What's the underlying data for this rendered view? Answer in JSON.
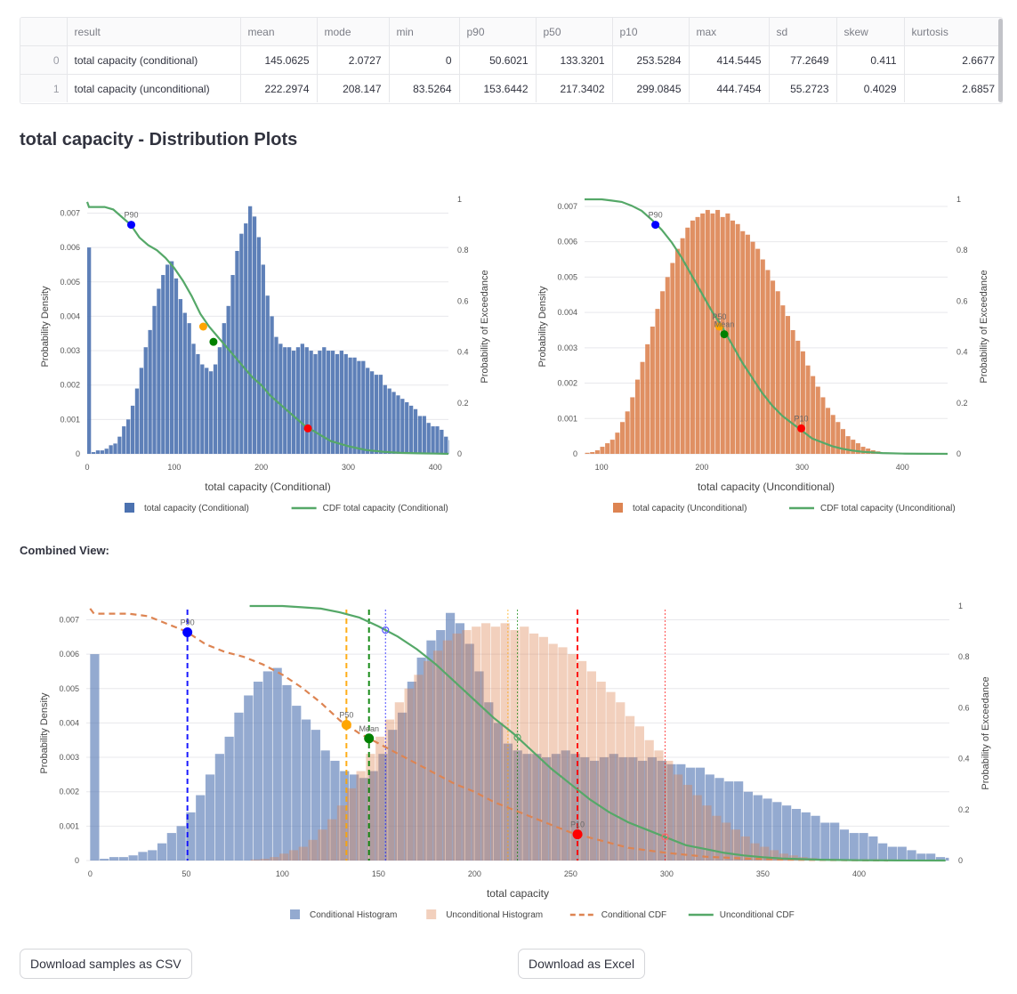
{
  "table": {
    "columns": [
      "",
      "result",
      "mean",
      "mode",
      "min",
      "p90",
      "p50",
      "p10",
      "max",
      "sd",
      "skew",
      "kurtosis"
    ],
    "rows": [
      [
        "0",
        "total capacity (conditional)",
        "145.0625",
        "2.0727",
        "0",
        "50.6021",
        "133.3201",
        "253.5284",
        "414.5445",
        "77.2649",
        "0.411",
        "2.6677"
      ],
      [
        "1",
        "total capacity (unconditional)",
        "222.2974",
        "208.147",
        "83.5264",
        "153.6442",
        "217.3402",
        "299.0845",
        "444.7454",
        "55.2723",
        "0.4029",
        "2.6857"
      ]
    ]
  },
  "section_title": "total capacity - Distribution Plots",
  "combined_label": "Combined View:",
  "buttons": {
    "csv": "Download samples as CSV",
    "excel": "Download as Excel"
  },
  "colors": {
    "conditional": "#4c72b0",
    "unconditional": "#dd8452",
    "cdf_green": "#55a868",
    "p90": "#0000ff",
    "p50": "#ffa500",
    "mean": "#008000",
    "p10": "#ff0000"
  },
  "chart_data": [
    {
      "type": "bar",
      "title": "",
      "xlabel": "total capacity (Conditional)",
      "ylabel": "Probability Density",
      "y2label": "Probability of Exceedance",
      "xlim": [
        0,
        415
      ],
      "ylim": [
        0,
        0.0074
      ],
      "y2lim": [
        0,
        1
      ],
      "xticks": [
        0,
        100,
        200,
        300,
        400
      ],
      "yticks": [
        0,
        0.001,
        0.002,
        0.003,
        0.004,
        0.005,
        0.006,
        0.007
      ],
      "y2ticks": [
        0,
        0.2,
        0.4,
        0.6,
        0.8,
        1
      ],
      "legend": [
        "total capacity (Conditional)",
        "CDF total capacity (Conditional)"
      ],
      "legend_position": "bottom",
      "series": [
        {
          "name": "total capacity (Conditional)",
          "kind": "histogram",
          "bin_start": 0,
          "bin_width": 5,
          "values": [
            0.006,
            5e-05,
            0.0001,
            0.0001,
            0.00015,
            0.00025,
            0.0003,
            0.0005,
            0.0008,
            0.001,
            0.0014,
            0.0019,
            0.0025,
            0.0031,
            0.0036,
            0.0043,
            0.0048,
            0.0052,
            0.0055,
            0.0056,
            0.0051,
            0.0045,
            0.0041,
            0.0038,
            0.0032,
            0.0029,
            0.0026,
            0.0025,
            0.0024,
            0.0026,
            0.0031,
            0.0038,
            0.0043,
            0.0052,
            0.0059,
            0.0064,
            0.0067,
            0.0072,
            0.0069,
            0.0063,
            0.0055,
            0.0046,
            0.004,
            0.0034,
            0.0032,
            0.0031,
            0.0031,
            0.003,
            0.0031,
            0.0032,
            0.0031,
            0.003,
            0.0029,
            0.003,
            0.0031,
            0.003,
            0.003,
            0.0029,
            0.003,
            0.0029,
            0.0028,
            0.0028,
            0.0027,
            0.0027,
            0.0025,
            0.0024,
            0.0023,
            0.0023,
            0.002,
            0.0019,
            0.0018,
            0.0017,
            0.0016,
            0.0015,
            0.0014,
            0.0013,
            0.0011,
            0.0011,
            0.0009,
            0.0008,
            0.0008,
            0.0007,
            0.0005,
            0.0004,
            0.0004,
            0.0003,
            0.0002,
            0.0002,
            0.0001,
            8e-05,
            5e-05,
            3e-05,
            2e-05,
            1e-05,
            1e-05,
            5e-06,
            3e-06,
            2e-06,
            1e-06,
            1e-06,
            5e-07,
            3e-07,
            2e-07
          ]
        },
        {
          "name": "CDF total capacity (Conditional)",
          "kind": "line",
          "axis": "y2",
          "x": [
            0,
            2,
            20,
            30,
            40,
            50,
            60,
            70,
            80,
            90,
            100,
            110,
            120,
            130,
            140,
            150,
            160,
            170,
            180,
            190,
            200,
            210,
            220,
            230,
            240,
            250,
            260,
            270,
            280,
            290,
            300,
            320,
            340,
            360,
            380,
            400,
            415
          ],
          "y": [
            0.99,
            0.97,
            0.97,
            0.96,
            0.93,
            0.9,
            0.85,
            0.82,
            0.8,
            0.77,
            0.73,
            0.68,
            0.62,
            0.55,
            0.5,
            0.46,
            0.42,
            0.38,
            0.34,
            0.3,
            0.27,
            0.23,
            0.2,
            0.17,
            0.14,
            0.11,
            0.09,
            0.07,
            0.05,
            0.04,
            0.03,
            0.015,
            0.008,
            0.004,
            0.002,
            0.001,
            0
          ]
        }
      ],
      "points": [
        {
          "label": "P90",
          "x": 50.6021,
          "y2": 0.9,
          "color": "#0000ff"
        },
        {
          "label": "",
          "x": 133.3201,
          "y2": 0.5,
          "color": "#ffa500"
        },
        {
          "label": "",
          "x": 145.0625,
          "y2": 0.44,
          "color": "#008000"
        },
        {
          "label": "",
          "x": 253.5284,
          "y2": 0.1,
          "color": "#ff0000"
        }
      ]
    },
    {
      "type": "bar",
      "title": "",
      "xlabel": "total capacity (Unconditional)",
      "ylabel": "Probability Density",
      "y2label": "Probability of Exceedance",
      "xlim": [
        83,
        445
      ],
      "ylim": [
        0,
        0.0072
      ],
      "y2lim": [
        0,
        1
      ],
      "xticks": [
        100,
        200,
        300,
        400
      ],
      "yticks": [
        0,
        0.001,
        0.002,
        0.003,
        0.004,
        0.005,
        0.006,
        0.007
      ],
      "y2ticks": [
        0,
        0.2,
        0.4,
        0.6,
        0.8,
        1
      ],
      "legend": [
        "total capacity (Unconditional)",
        "CDF total capacity (Unconditional)"
      ],
      "legend_position": "bottom",
      "series": [
        {
          "name": "total capacity (Unconditional)",
          "kind": "histogram",
          "bin_start": 83.5,
          "bin_width": 5,
          "values": [
            3e-05,
            5e-05,
            0.0001,
            0.0002,
            0.0003,
            0.0004,
            0.0006,
            0.0009,
            0.0012,
            0.0016,
            0.0021,
            0.0026,
            0.0031,
            0.0036,
            0.0041,
            0.0046,
            0.005,
            0.0054,
            0.0058,
            0.0061,
            0.0064,
            0.0066,
            0.0067,
            0.0068,
            0.0069,
            0.0068,
            0.0069,
            0.0067,
            0.0068,
            0.0066,
            0.0065,
            0.0063,
            0.0062,
            0.006,
            0.0058,
            0.0055,
            0.0052,
            0.0049,
            0.0046,
            0.0042,
            0.0039,
            0.0035,
            0.0032,
            0.0029,
            0.0025,
            0.0022,
            0.0019,
            0.0016,
            0.0013,
            0.0011,
            0.0009,
            0.0007,
            0.0005,
            0.0004,
            0.0003,
            0.0002,
            0.00015,
            0.0001,
            7e-05,
            4e-05,
            2e-05,
            1e-05,
            5e-06,
            2e-06,
            1e-06,
            5e-07,
            2e-07,
            1e-07,
            5e-08,
            2e-08,
            1e-08,
            5e-09
          ]
        },
        {
          "name": "CDF total capacity (Unconditional)",
          "kind": "line",
          "axis": "y2",
          "x": [
            83,
            100,
            110,
            120,
            130,
            140,
            150,
            160,
            170,
            180,
            190,
            200,
            210,
            220,
            230,
            240,
            250,
            260,
            270,
            280,
            290,
            300,
            310,
            320,
            330,
            340,
            350,
            360,
            380,
            400,
            420,
            445
          ],
          "y": [
            1,
            1,
            0.995,
            0.99,
            0.975,
            0.955,
            0.92,
            0.88,
            0.83,
            0.77,
            0.7,
            0.63,
            0.56,
            0.5,
            0.43,
            0.36,
            0.3,
            0.24,
            0.19,
            0.15,
            0.12,
            0.09,
            0.06,
            0.045,
            0.03,
            0.02,
            0.013,
            0.008,
            0.003,
            0.001,
            0.0003,
            0
          ]
        }
      ],
      "points": [
        {
          "label": "P90",
          "x": 153.6442,
          "y2": 0.9,
          "color": "#0000ff"
        },
        {
          "label": "P50",
          "x": 217.3402,
          "y2": 0.5,
          "color": "#ffa500"
        },
        {
          "label": "Mean",
          "x": 222.2974,
          "y2": 0.47,
          "color": "#008000"
        },
        {
          "label": "P10",
          "x": 299.0845,
          "y2": 0.1,
          "color": "#ff0000"
        }
      ]
    },
    {
      "type": "bar",
      "title": "",
      "xlabel": "total capacity",
      "ylabel": "Probability Density",
      "y2label": "Probability of Exceedance",
      "xlim": [
        -2,
        447
      ],
      "ylim": [
        0,
        0.0074
      ],
      "y2lim": [
        0,
        1
      ],
      "xticks": [
        0,
        50,
        100,
        150,
        200,
        250,
        300,
        350,
        400
      ],
      "yticks": [
        0,
        0.001,
        0.002,
        0.003,
        0.004,
        0.005,
        0.006,
        0.007
      ],
      "y2ticks": [
        0,
        0.2,
        0.4,
        0.6,
        0.8,
        1
      ],
      "legend": [
        "Conditional Histogram",
        "Unconditional Histogram",
        "Conditional CDF",
        "Unconditional CDF"
      ],
      "legend_position": "bottom",
      "reference_lines": [
        {
          "x": 50.6021,
          "color": "#0000ff",
          "style": "dash"
        },
        {
          "x": 133.3201,
          "color": "#ffa500",
          "style": "dash"
        },
        {
          "x": 145.0625,
          "color": "#008000",
          "style": "dash"
        },
        {
          "x": 253.5284,
          "color": "#ff0000",
          "style": "dash"
        },
        {
          "x": 153.6442,
          "color": "#0000ff",
          "style": "dot"
        },
        {
          "x": 217.3402,
          "color": "#ffa500",
          "style": "dot"
        },
        {
          "x": 222.2974,
          "color": "#008000",
          "style": "dot"
        },
        {
          "x": 299.0845,
          "color": "#ff0000",
          "style": "dot"
        }
      ],
      "points": [
        {
          "label": "P90",
          "x": 50.6021,
          "y2": 0.9,
          "color": "#0000ff"
        },
        {
          "label": "P50",
          "x": 133.3201,
          "y2": 0.5,
          "color": "#ffa500"
        },
        {
          "label": "Mean",
          "x": 145.0625,
          "y2": 0.44,
          "color": "#008000"
        },
        {
          "label": "P10",
          "x": 253.5284,
          "y2": 0.1,
          "color": "#ff0000"
        }
      ]
    }
  ]
}
